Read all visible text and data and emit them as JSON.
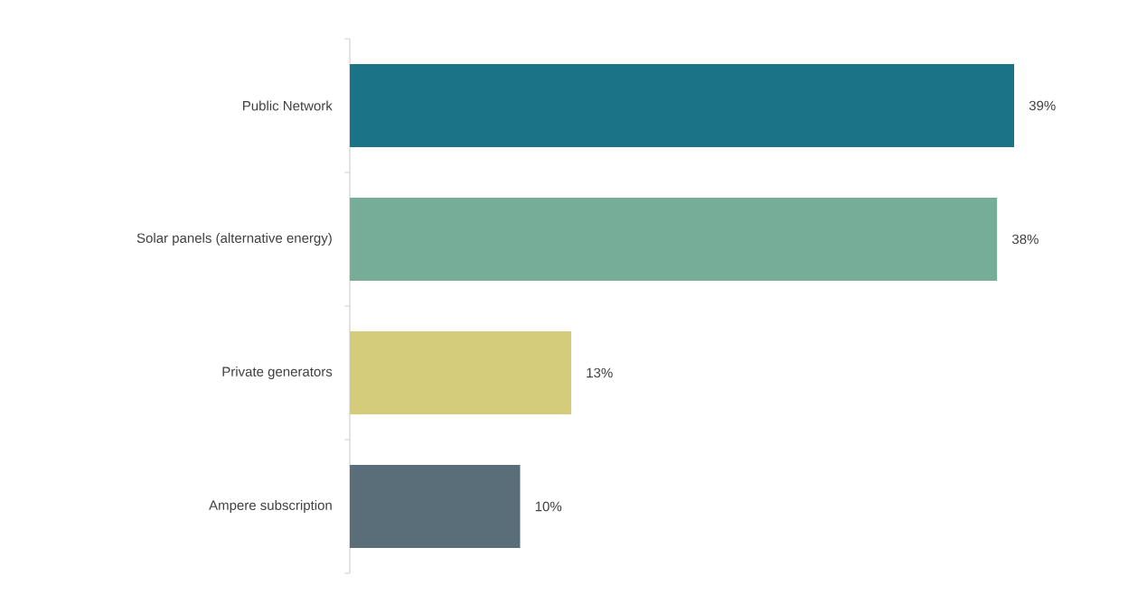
{
  "chart_data": {
    "type": "bar",
    "orientation": "horizontal",
    "categories": [
      "Public Network",
      "Solar panels (alternative energy)",
      "Private generators",
      "Ampere subscription"
    ],
    "values": [
      39,
      38,
      13,
      10
    ],
    "colors": [
      "#1b7387",
      "#76ad99",
      "#d4cc7a",
      "#5a6e79"
    ],
    "value_labels": [
      "39%",
      "38%",
      "13%",
      "10%"
    ]
  }
}
